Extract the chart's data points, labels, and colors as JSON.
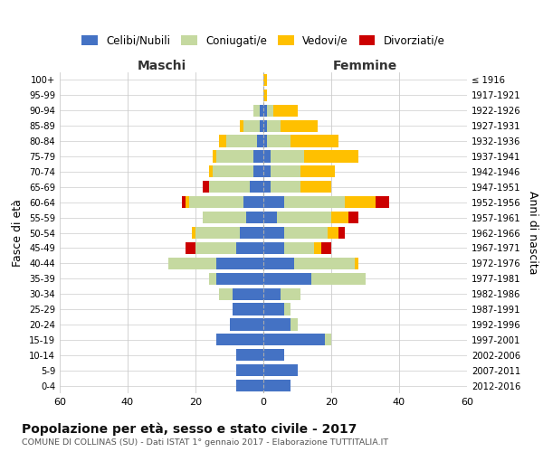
{
  "age_groups": [
    "0-4",
    "5-9",
    "10-14",
    "15-19",
    "20-24",
    "25-29",
    "30-34",
    "35-39",
    "40-44",
    "45-49",
    "50-54",
    "55-59",
    "60-64",
    "65-69",
    "70-74",
    "75-79",
    "80-84",
    "85-89",
    "90-94",
    "95-99",
    "100+"
  ],
  "birth_years": [
    "2012-2016",
    "2007-2011",
    "2002-2006",
    "1997-2001",
    "1992-1996",
    "1987-1991",
    "1982-1986",
    "1977-1981",
    "1972-1976",
    "1967-1971",
    "1962-1966",
    "1957-1961",
    "1952-1956",
    "1947-1951",
    "1942-1946",
    "1937-1941",
    "1932-1936",
    "1927-1931",
    "1922-1926",
    "1917-1921",
    "≤ 1916"
  ],
  "maschi": {
    "celibi": [
      8,
      8,
      8,
      14,
      10,
      9,
      9,
      14,
      14,
      8,
      7,
      5,
      6,
      4,
      3,
      3,
      2,
      1,
      1,
      0,
      0
    ],
    "coniugati": [
      0,
      0,
      0,
      0,
      0,
      0,
      4,
      2,
      14,
      12,
      13,
      13,
      16,
      12,
      12,
      11,
      9,
      5,
      2,
      0,
      0
    ],
    "vedovi": [
      0,
      0,
      0,
      0,
      0,
      0,
      0,
      0,
      0,
      0,
      1,
      0,
      1,
      0,
      1,
      1,
      2,
      1,
      0,
      0,
      0
    ],
    "divorziati": [
      0,
      0,
      0,
      0,
      0,
      0,
      0,
      0,
      0,
      3,
      0,
      0,
      1,
      2,
      0,
      0,
      0,
      0,
      0,
      0,
      0
    ]
  },
  "femmine": {
    "nubili": [
      8,
      10,
      6,
      18,
      8,
      6,
      5,
      14,
      9,
      6,
      6,
      4,
      6,
      2,
      2,
      2,
      1,
      1,
      1,
      0,
      0
    ],
    "coniugate": [
      0,
      0,
      0,
      2,
      2,
      2,
      6,
      16,
      18,
      9,
      13,
      16,
      18,
      9,
      9,
      10,
      7,
      4,
      2,
      0,
      0
    ],
    "vedove": [
      0,
      0,
      0,
      0,
      0,
      0,
      0,
      0,
      1,
      2,
      3,
      5,
      9,
      9,
      10,
      16,
      14,
      11,
      7,
      1,
      1
    ],
    "divorziate": [
      0,
      0,
      0,
      0,
      0,
      0,
      0,
      0,
      0,
      3,
      2,
      3,
      4,
      0,
      0,
      0,
      0,
      0,
      0,
      0,
      0
    ]
  },
  "colors": {
    "celibi_nubili": "#4472c4",
    "coniugati": "#c5d9a0",
    "vedovi": "#ffc000",
    "divorziati": "#cc0000"
  },
  "xlim": 60,
  "title": "Popolazione per età, sesso e stato civile - 2017",
  "subtitle": "COMUNE DI COLLINAS (SU) - Dati ISTAT 1° gennaio 2017 - Elaborazione TUTTITALIA.IT",
  "ylabel_left": "Fasce di età",
  "ylabel_right": "Anni di nascita",
  "xlabel_maschi": "Maschi",
  "xlabel_femmine": "Femmine",
  "legend_labels": [
    "Celibi/Nubili",
    "Coniugati/e",
    "Vedovi/e",
    "Divorziati/e"
  ],
  "background_color": "#ffffff",
  "grid_color": "#cccccc"
}
